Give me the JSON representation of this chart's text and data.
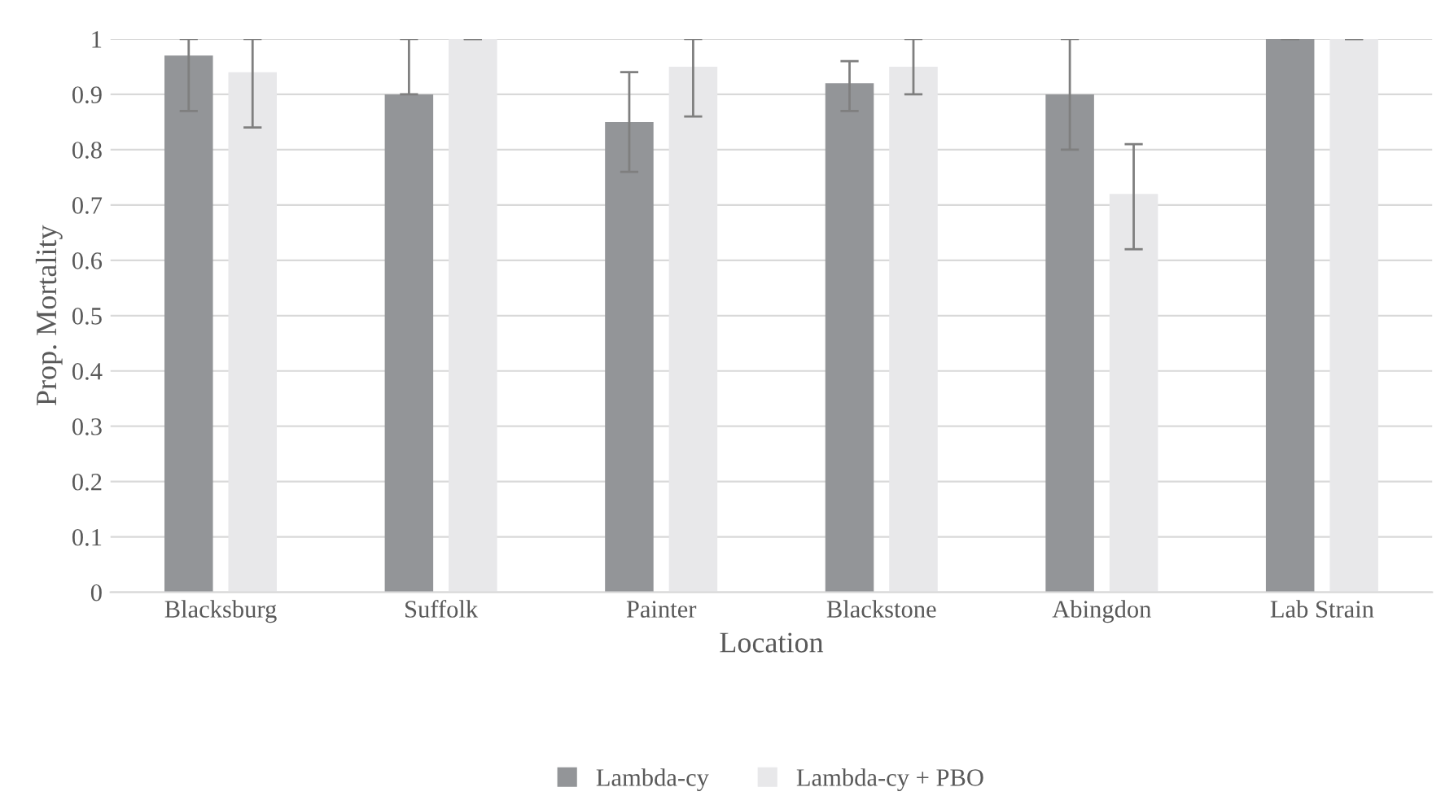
{
  "chart_data": {
    "type": "bar",
    "xlabel": "Location",
    "ylabel": "Prop. Mortality",
    "categories": [
      "Blacksburg",
      "Suffolk",
      "Painter",
      "Blackstone",
      "Abingdon",
      "Lab Strain"
    ],
    "series": [
      {
        "name": "Lambda-cy",
        "color": "#939598",
        "values": [
          0.97,
          0.9,
          0.85,
          0.92,
          0.9,
          1
        ],
        "errors": [
          [
            0.87,
            1
          ],
          [
            0.9,
            1
          ],
          [
            0.76,
            0.94
          ],
          [
            0.87,
            0.96
          ],
          [
            0.8,
            1
          ],
          [
            1,
            1
          ]
        ]
      },
      {
        "name": "Lambda-cy + PBO",
        "color": "#e8e8ea",
        "values": [
          0.94,
          1,
          0.95,
          0.95,
          0.72,
          1
        ],
        "errors": [
          [
            0.84,
            1
          ],
          [
            1,
            1
          ],
          [
            0.86,
            1
          ],
          [
            0.9,
            1
          ],
          [
            0.62,
            0.81
          ],
          [
            1,
            1
          ]
        ]
      }
    ],
    "ylim": [
      0,
      1
    ],
    "yticks": [
      0,
      0.1,
      0.2,
      0.3,
      0.4,
      0.5,
      0.6,
      0.7,
      0.8,
      0.9,
      1
    ],
    "grid": "y",
    "legend": "bottom"
  }
}
